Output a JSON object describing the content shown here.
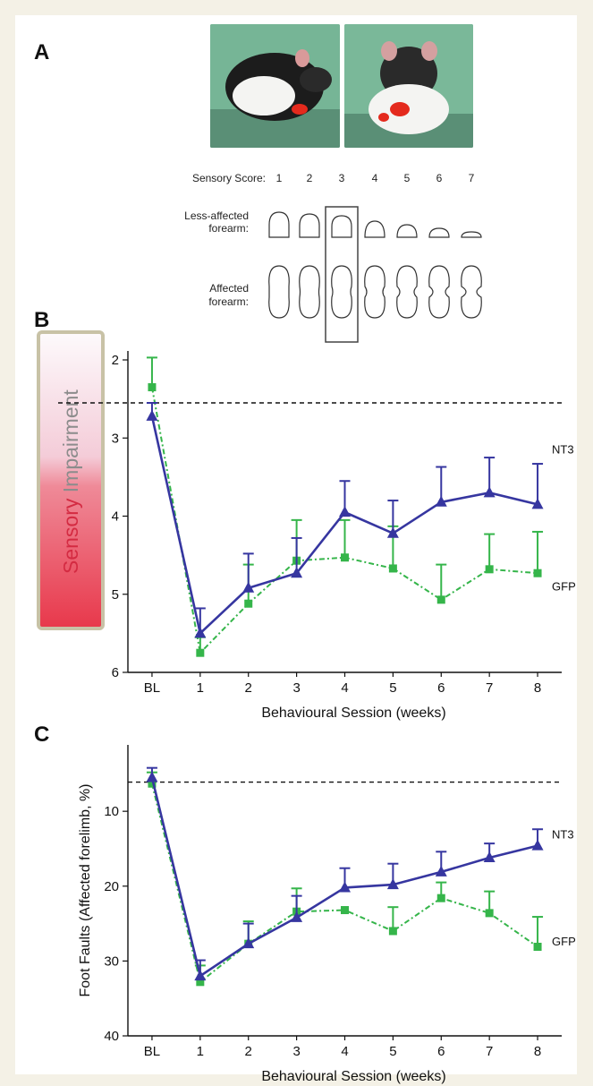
{
  "panels": {
    "a": "A",
    "b": "B",
    "c": "C"
  },
  "schematic": {
    "score_label": "Sensory Score:",
    "scores": [
      "1",
      "2",
      "3",
      "4",
      "5",
      "6",
      "7"
    ],
    "less_affected_line1": "Less-affected",
    "less_affected_line2": "forearm:",
    "affected_line1": "Affected",
    "affected_line2": "forearm:",
    "highlighted_score": "3"
  },
  "sidebar": {
    "word1": "Sensory",
    "word2": " Impairment"
  },
  "colors": {
    "nt3": "#3636a0",
    "gfp": "#35b54a",
    "dashed": "#111111"
  },
  "chart_data": [
    {
      "type": "line",
      "panel": "B",
      "categories": [
        "BL",
        "1",
        "2",
        "3",
        "4",
        "5",
        "6",
        "7",
        "8"
      ],
      "xlabel": "Behavioural Session (weeks)",
      "ylabel": "",
      "ylim": [
        6,
        2
      ],
      "y_inverted": true,
      "yticks": [
        2,
        3,
        4,
        5,
        6
      ],
      "reference_line": 2.55,
      "series": [
        {
          "name": "NT3",
          "marker": "triangle",
          "values": [
            2.72,
            5.5,
            4.92,
            4.73,
            3.95,
            4.22,
            3.82,
            3.7,
            3.85
          ],
          "err_upper": [
            2.55,
            5.18,
            4.48,
            4.28,
            3.55,
            3.8,
            3.37,
            3.25,
            3.33
          ]
        },
        {
          "name": "GFP",
          "marker": "square",
          "values": [
            2.35,
            5.75,
            5.12,
            4.57,
            4.53,
            4.67,
            5.07,
            4.68,
            4.73
          ],
          "err_upper": [
            1.97,
            5.55,
            4.62,
            4.05,
            4.05,
            4.13,
            4.62,
            4.23,
            4.2
          ]
        }
      ]
    },
    {
      "type": "line",
      "panel": "C",
      "categories": [
        "BL",
        "1",
        "2",
        "3",
        "4",
        "5",
        "6",
        "7",
        "8"
      ],
      "xlabel": "Behavioural Session (weeks)",
      "ylabel": "Foot Faults (Affected forelimb, %)",
      "ylim": [
        40,
        4
      ],
      "y_inverted": true,
      "yticks": [
        10,
        20,
        30,
        40
      ],
      "reference_line": 6.1,
      "series": [
        {
          "name": "NT3",
          "marker": "triangle",
          "values": [
            5.5,
            32,
            27.7,
            24.2,
            20.2,
            19.8,
            18.1,
            16.2,
            14.6
          ],
          "err_upper": [
            4.2,
            29.9,
            25,
            21.3,
            17.6,
            17,
            15.4,
            14.3,
            12.4
          ]
        },
        {
          "name": "GFP",
          "marker": "square",
          "values": [
            6.3,
            32.8,
            27.7,
            23.4,
            23.2,
            26,
            21.6,
            23.6,
            28.1
          ],
          "err_upper": [
            4.8,
            30.6,
            24.7,
            20.3,
            null,
            22.8,
            19.5,
            20.7,
            24.1
          ]
        }
      ]
    }
  ]
}
